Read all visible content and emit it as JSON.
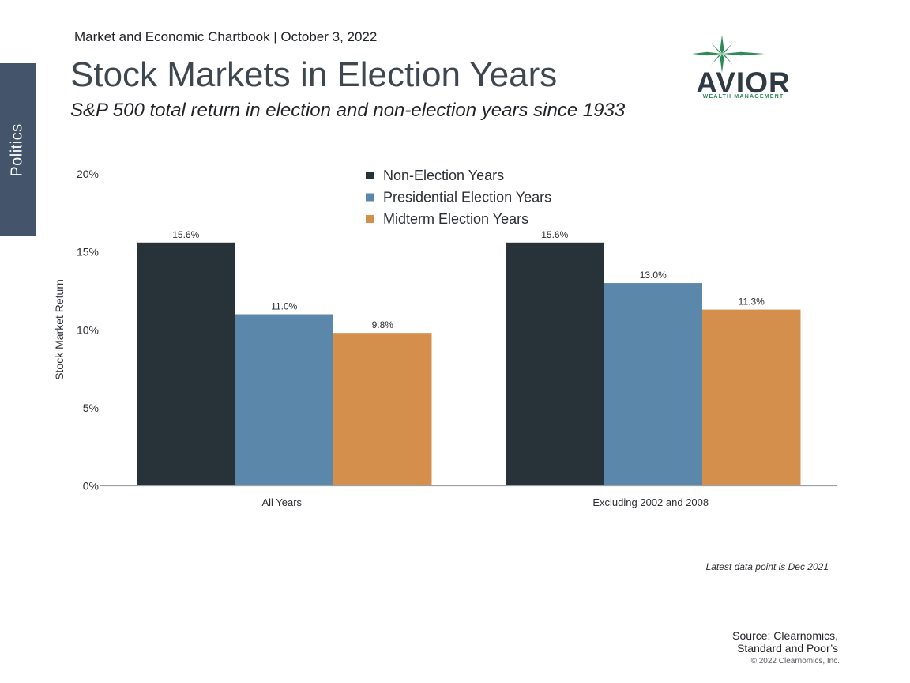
{
  "sidebar": {
    "label": "Politics"
  },
  "header": {
    "chartbook": "Market and Economic Chartbook | October 3, 2022",
    "title": "Stock Markets in Election Years",
    "subtitle": "S&P 500 total return in election and non-election years since 1933"
  },
  "logo": {
    "wordmark": "AVIOR",
    "tagline": "WEALTH MANAGEMENT",
    "icon": "star-icon",
    "color": "#2e8b57"
  },
  "chart_data": {
    "type": "bar",
    "categories": [
      "All Years",
      "Excluding 2002 and 2008"
    ],
    "series": [
      {
        "name": "Non-Election Years",
        "values": [
          15.6,
          15.6
        ],
        "labels": [
          "15.6%",
          "15.6%"
        ],
        "color": "#283239"
      },
      {
        "name": "Presidential Election Years",
        "values": [
          11.0,
          13.0
        ],
        "labels": [
          "11.0%",
          "13.0%"
        ],
        "color": "#5b87ab"
      },
      {
        "name": "Midterm Election Years",
        "values": [
          9.8,
          11.3
        ],
        "labels": [
          "9.8%",
          "11.3%"
        ],
        "color": "#d58f4c"
      }
    ],
    "ylabel": "Stock Market Return",
    "ylim": [
      0,
      20
    ],
    "yticks": [
      0,
      5,
      10,
      15,
      20
    ],
    "ytick_labels": [
      "0%",
      "5%",
      "10%",
      "15%",
      "20%"
    ],
    "grid": false,
    "legend_position": "top-center"
  },
  "footer": {
    "note": "Latest data point is Dec 2021",
    "source_line1": "Source: Clearnomics,",
    "source_line2": "Standard and Poor’s",
    "copyright": "© 2022 Clearnomics, Inc."
  }
}
